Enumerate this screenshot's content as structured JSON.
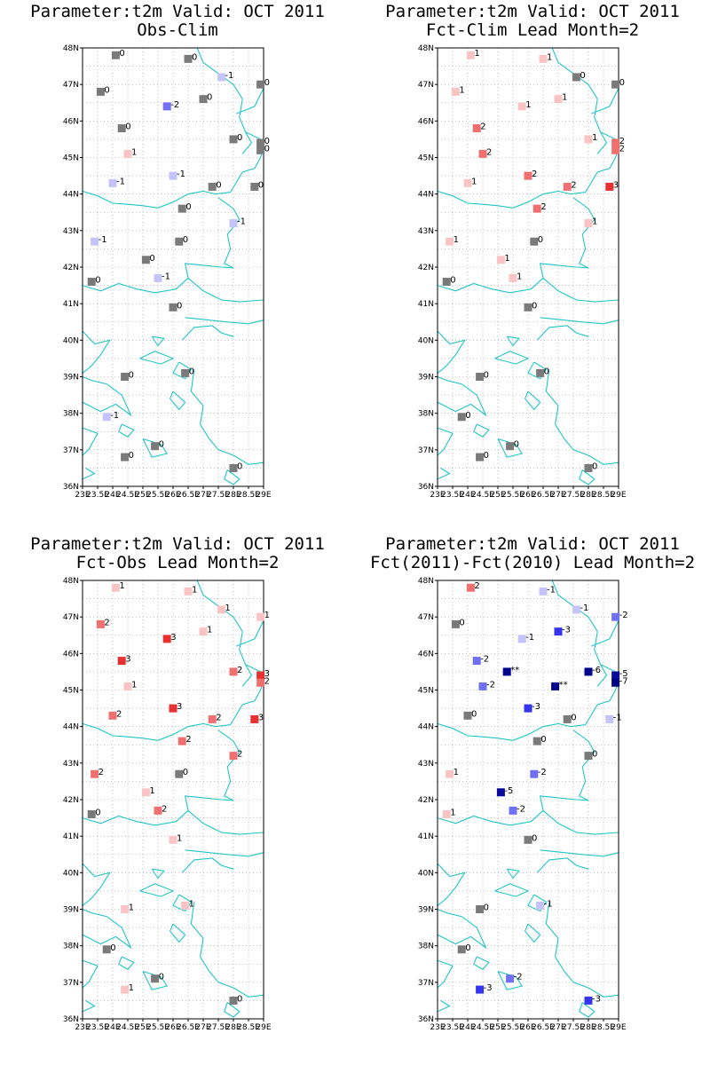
{
  "map": {
    "lon_min": 23,
    "lon_max": 29,
    "lat_min": 36,
    "lat_max": 48,
    "lat_labels": [
      "36N",
      "37N",
      "38N",
      "39N",
      "40N",
      "41N",
      "42N",
      "43N",
      "44N",
      "45N",
      "46N",
      "47N",
      "48N"
    ],
    "lon_labels": [
      "23E",
      "23.5E",
      "24E",
      "24.5E",
      "25E",
      "25.5E",
      "26E",
      "26.5E",
      "27E",
      "27.5E",
      "28E",
      "28.5E",
      "29E"
    ],
    "grid": "dotted",
    "coast_color": "#22c6c6",
    "color_scale": {
      "-7": "#00007f",
      "-6": "#00008b",
      "-5": "#0a0a99",
      "-3": "#3535ee",
      "-2": "#7070f4",
      "-1": "#c4c4fa",
      "0": "#7a7a7a",
      "1": "#fbc4c4",
      "2": "#f07070",
      "3": "#e83030",
      "**": "#00008b"
    }
  },
  "panels": [
    {
      "title": "Parameter:t2m Valid: OCT 2011",
      "subtitle": "Obs-Clim",
      "stations": [
        {
          "lon": 24.1,
          "lat": 47.8,
          "v": "0"
        },
        {
          "lon": 26.5,
          "lat": 47.7,
          "v": "0"
        },
        {
          "lon": 27.6,
          "lat": 47.2,
          "v": "-1"
        },
        {
          "lon": 28.9,
          "lat": 47.0,
          "v": "0"
        },
        {
          "lon": 23.6,
          "lat": 46.8,
          "v": "0"
        },
        {
          "lon": 27.0,
          "lat": 46.6,
          "v": "0"
        },
        {
          "lon": 25.8,
          "lat": 46.4,
          "v": "-2"
        },
        {
          "lon": 24.3,
          "lat": 45.8,
          "v": "0"
        },
        {
          "lon": 28.0,
          "lat": 45.5,
          "v": "0"
        },
        {
          "lon": 28.9,
          "lat": 45.4,
          "v": "0"
        },
        {
          "lon": 24.5,
          "lat": 45.1,
          "v": "1"
        },
        {
          "lon": 28.9,
          "lat": 45.2,
          "v": "0"
        },
        {
          "lon": 26.0,
          "lat": 44.5,
          "v": "-1"
        },
        {
          "lon": 24.0,
          "lat": 44.3,
          "v": "-1"
        },
        {
          "lon": 27.3,
          "lat": 44.2,
          "v": "0"
        },
        {
          "lon": 28.7,
          "lat": 44.2,
          "v": "0"
        },
        {
          "lon": 26.3,
          "lat": 43.6,
          "v": "0"
        },
        {
          "lon": 28.0,
          "lat": 43.2,
          "v": "-1"
        },
        {
          "lon": 23.4,
          "lat": 42.7,
          "v": "-1"
        },
        {
          "lon": 26.2,
          "lat": 42.7,
          "v": "0"
        },
        {
          "lon": 25.1,
          "lat": 42.2,
          "v": "0"
        },
        {
          "lon": 25.5,
          "lat": 41.7,
          "v": "-1"
        },
        {
          "lon": 23.3,
          "lat": 41.6,
          "v": "0"
        },
        {
          "lon": 26.0,
          "lat": 40.9,
          "v": "0"
        },
        {
          "lon": 24.4,
          "lat": 39.0,
          "v": "0"
        },
        {
          "lon": 26.4,
          "lat": 39.1,
          "v": "0"
        },
        {
          "lon": 23.8,
          "lat": 37.9,
          "v": "-1"
        },
        {
          "lon": 25.4,
          "lat": 37.1,
          "v": "0"
        },
        {
          "lon": 24.4,
          "lat": 36.8,
          "v": "0"
        },
        {
          "lon": 28.0,
          "lat": 36.5,
          "v": "0"
        }
      ]
    },
    {
      "title": "Parameter:t2m Valid: OCT 2011",
      "subtitle": "Fct-Clim Lead Month=2",
      "stations": [
        {
          "lon": 24.1,
          "lat": 47.8,
          "v": "1"
        },
        {
          "lon": 26.5,
          "lat": 47.7,
          "v": "1"
        },
        {
          "lon": 27.6,
          "lat": 47.2,
          "v": "0"
        },
        {
          "lon": 28.9,
          "lat": 47.0,
          "v": "0"
        },
        {
          "lon": 23.6,
          "lat": 46.8,
          "v": "1"
        },
        {
          "lon": 27.0,
          "lat": 46.6,
          "v": "1"
        },
        {
          "lon": 25.8,
          "lat": 46.4,
          "v": "1"
        },
        {
          "lon": 24.3,
          "lat": 45.8,
          "v": "2"
        },
        {
          "lon": 28.0,
          "lat": 45.5,
          "v": "1"
        },
        {
          "lon": 28.9,
          "lat": 45.4,
          "v": "2"
        },
        {
          "lon": 24.5,
          "lat": 45.1,
          "v": "2"
        },
        {
          "lon": 28.9,
          "lat": 45.2,
          "v": "2"
        },
        {
          "lon": 26.0,
          "lat": 44.5,
          "v": "2"
        },
        {
          "lon": 24.0,
          "lat": 44.3,
          "v": "1"
        },
        {
          "lon": 27.3,
          "lat": 44.2,
          "v": "2"
        },
        {
          "lon": 28.7,
          "lat": 44.2,
          "v": "3"
        },
        {
          "lon": 26.3,
          "lat": 43.6,
          "v": "2"
        },
        {
          "lon": 28.0,
          "lat": 43.2,
          "v": "1"
        },
        {
          "lon": 23.4,
          "lat": 42.7,
          "v": "1"
        },
        {
          "lon": 26.2,
          "lat": 42.7,
          "v": "0"
        },
        {
          "lon": 25.1,
          "lat": 42.2,
          "v": "1"
        },
        {
          "lon": 25.5,
          "lat": 41.7,
          "v": "1"
        },
        {
          "lon": 23.3,
          "lat": 41.6,
          "v": "0"
        },
        {
          "lon": 26.0,
          "lat": 40.9,
          "v": "0"
        },
        {
          "lon": 24.4,
          "lat": 39.0,
          "v": "0"
        },
        {
          "lon": 26.4,
          "lat": 39.1,
          "v": "0"
        },
        {
          "lon": 23.8,
          "lat": 37.9,
          "v": "0"
        },
        {
          "lon": 25.4,
          "lat": 37.1,
          "v": "0"
        },
        {
          "lon": 24.4,
          "lat": 36.8,
          "v": "0"
        },
        {
          "lon": 28.0,
          "lat": 36.5,
          "v": "0"
        }
      ]
    },
    {
      "title": "Parameter:t2m Valid: OCT 2011",
      "subtitle": "Fct-Obs Lead Month=2",
      "stations": [
        {
          "lon": 24.1,
          "lat": 47.8,
          "v": "1"
        },
        {
          "lon": 26.5,
          "lat": 47.7,
          "v": "1"
        },
        {
          "lon": 27.6,
          "lat": 47.2,
          "v": "1"
        },
        {
          "lon": 28.9,
          "lat": 47.0,
          "v": "1"
        },
        {
          "lon": 23.6,
          "lat": 46.8,
          "v": "2"
        },
        {
          "lon": 27.0,
          "lat": 46.6,
          "v": "1"
        },
        {
          "lon": 25.8,
          "lat": 46.4,
          "v": "3"
        },
        {
          "lon": 24.3,
          "lat": 45.8,
          "v": "3"
        },
        {
          "lon": 28.0,
          "lat": 45.5,
          "v": "2"
        },
        {
          "lon": 28.9,
          "lat": 45.4,
          "v": "3"
        },
        {
          "lon": 24.5,
          "lat": 45.1,
          "v": "1"
        },
        {
          "lon": 28.9,
          "lat": 45.2,
          "v": "2"
        },
        {
          "lon": 26.0,
          "lat": 44.5,
          "v": "3"
        },
        {
          "lon": 24.0,
          "lat": 44.3,
          "v": "2"
        },
        {
          "lon": 27.3,
          "lat": 44.2,
          "v": "2"
        },
        {
          "lon": 28.7,
          "lat": 44.2,
          "v": "3"
        },
        {
          "lon": 26.3,
          "lat": 43.6,
          "v": "2"
        },
        {
          "lon": 28.0,
          "lat": 43.2,
          "v": "2"
        },
        {
          "lon": 23.4,
          "lat": 42.7,
          "v": "2"
        },
        {
          "lon": 26.2,
          "lat": 42.7,
          "v": "0"
        },
        {
          "lon": 25.1,
          "lat": 42.2,
          "v": "1"
        },
        {
          "lon": 25.5,
          "lat": 41.7,
          "v": "2"
        },
        {
          "lon": 23.3,
          "lat": 41.6,
          "v": "0"
        },
        {
          "lon": 26.0,
          "lat": 40.9,
          "v": "1"
        },
        {
          "lon": 24.4,
          "lat": 39.0,
          "v": "1"
        },
        {
          "lon": 26.4,
          "lat": 39.1,
          "v": "1"
        },
        {
          "lon": 23.8,
          "lat": 37.9,
          "v": "0"
        },
        {
          "lon": 25.4,
          "lat": 37.1,
          "v": "0"
        },
        {
          "lon": 24.4,
          "lat": 36.8,
          "v": "1"
        },
        {
          "lon": 28.0,
          "lat": 36.5,
          "v": "0"
        }
      ]
    },
    {
      "title": "Parameter:t2m Valid: OCT 2011",
      "subtitle": "Fct(2011)-Fct(2010) Lead Month=2",
      "stations": [
        {
          "lon": 24.1,
          "lat": 47.8,
          "v": "2"
        },
        {
          "lon": 26.5,
          "lat": 47.7,
          "v": "-1"
        },
        {
          "lon": 27.6,
          "lat": 47.2,
          "v": "-1"
        },
        {
          "lon": 28.9,
          "lat": 47.0,
          "v": "-2"
        },
        {
          "lon": 23.6,
          "lat": 46.8,
          "v": "0"
        },
        {
          "lon": 27.0,
          "lat": 46.6,
          "v": "-3"
        },
        {
          "lon": 25.8,
          "lat": 46.4,
          "v": "-1"
        },
        {
          "lon": 24.3,
          "lat": 45.8,
          "v": "-2"
        },
        {
          "lon": 28.0,
          "lat": 45.5,
          "v": "-6"
        },
        {
          "lon": 28.9,
          "lat": 45.4,
          "v": "-5"
        },
        {
          "lon": 24.5,
          "lat": 45.1,
          "v": "-2"
        },
        {
          "lon": 28.9,
          "lat": 45.2,
          "v": "-7"
        },
        {
          "lon": 25.3,
          "lat": 45.5,
          "v": "**"
        },
        {
          "lon": 26.9,
          "lat": 45.1,
          "v": "**"
        },
        {
          "lon": 26.0,
          "lat": 44.5,
          "v": "-3"
        },
        {
          "lon": 24.0,
          "lat": 44.3,
          "v": "0"
        },
        {
          "lon": 27.3,
          "lat": 44.2,
          "v": "0"
        },
        {
          "lon": 28.7,
          "lat": 44.2,
          "v": "-1"
        },
        {
          "lon": 26.3,
          "lat": 43.6,
          "v": "0"
        },
        {
          "lon": 28.0,
          "lat": 43.2,
          "v": "0"
        },
        {
          "lon": 23.4,
          "lat": 42.7,
          "v": "1"
        },
        {
          "lon": 26.2,
          "lat": 42.7,
          "v": "-2"
        },
        {
          "lon": 25.1,
          "lat": 42.2,
          "v": "-5"
        },
        {
          "lon": 25.5,
          "lat": 41.7,
          "v": "-2"
        },
        {
          "lon": 23.3,
          "lat": 41.6,
          "v": "1"
        },
        {
          "lon": 26.0,
          "lat": 40.9,
          "v": "0"
        },
        {
          "lon": 24.4,
          "lat": 39.0,
          "v": "0"
        },
        {
          "lon": 26.4,
          "lat": 39.1,
          "v": "-1"
        },
        {
          "lon": 23.8,
          "lat": 37.9,
          "v": "0"
        },
        {
          "lon": 25.4,
          "lat": 37.1,
          "v": "-2"
        },
        {
          "lon": 24.4,
          "lat": 36.8,
          "v": "-3"
        },
        {
          "lon": 28.0,
          "lat": 36.5,
          "v": "-3"
        }
      ]
    }
  ]
}
